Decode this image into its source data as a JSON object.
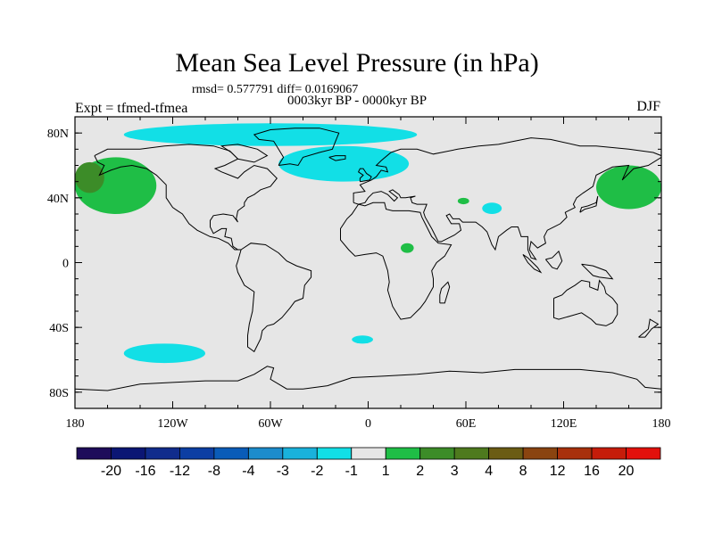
{
  "title": "Mean Sea Level Pressure (in hPa)",
  "stats": "rmsd= 0.577791 diff= 0.0169067",
  "period": "0003kyr BP - 0000kyr BP",
  "experiment": "Expt = tfmed-tfmea",
  "season": "DJF",
  "chart_data": {
    "type": "heatmap",
    "projection": "cylindrical-equidistant",
    "variable": "Mean Sea Level Pressure difference",
    "units": "hPa",
    "lon_range": [
      -180,
      180
    ],
    "lat_range": [
      -90,
      90
    ],
    "x_ticks": [
      {
        "value": -180,
        "label": "180"
      },
      {
        "value": -120,
        "label": "120W"
      },
      {
        "value": -60,
        "label": "60W"
      },
      {
        "value": 0,
        "label": "0"
      },
      {
        "value": 60,
        "label": "60E"
      },
      {
        "value": 120,
        "label": "120E"
      },
      {
        "value": 180,
        "label": "180"
      }
    ],
    "y_ticks": [
      {
        "value": 80,
        "label": "80N"
      },
      {
        "value": 40,
        "label": "40N"
      },
      {
        "value": 0,
        "label": "0"
      },
      {
        "value": -40,
        "label": "40S"
      },
      {
        "value": -80,
        "label": "80S"
      }
    ],
    "colorbar": {
      "labels": [
        "-20",
        "-16",
        "-12",
        "-8",
        "-4",
        "-3",
        "-2",
        "-1",
        "1",
        "2",
        "3",
        "4",
        "8",
        "12",
        "16",
        "20"
      ],
      "colors": [
        "#1e0c5a",
        "#0b1674",
        "#102c8c",
        "#0c3ea3",
        "#0a5cb8",
        "#1c8ccc",
        "#19b2dc",
        "#12dfe6",
        "#e6e6e6",
        "#1fbe46",
        "#3c8c28",
        "#4e7a1e",
        "#6b5c14",
        "#8a4410",
        "#a8300c",
        "#c61c0a",
        "#e2100c"
      ]
    },
    "background_class": "-1 to 1",
    "regions": [
      {
        "name": "arctic-ocean",
        "range": "-2 to -1",
        "lon": [
          -150,
          30
        ],
        "lat": [
          72,
          86
        ]
      },
      {
        "name": "north-atlantic",
        "range": "-2 to -1",
        "lon": [
          -55,
          25
        ],
        "lat": [
          50,
          72
        ]
      },
      {
        "name": "tibet-low",
        "range": "-2 to -1",
        "lon": [
          70,
          82
        ],
        "lat": [
          30,
          37
        ]
      },
      {
        "name": "south-pacific",
        "range": "-2 to -1",
        "lon": [
          -150,
          -100
        ],
        "lat": [
          -62,
          -50
        ]
      },
      {
        "name": "south-atlantic",
        "range": "-2 to -1",
        "lon": [
          -10,
          3
        ],
        "lat": [
          -50,
          -45
        ]
      },
      {
        "name": "north-pacific",
        "range": "1 to 2",
        "lon": [
          -180,
          -130
        ],
        "lat": [
          30,
          65
        ]
      },
      {
        "name": "north-pacific-core",
        "range": "2 to 3",
        "lon": [
          -180,
          -162
        ],
        "lat": [
          43,
          62
        ]
      },
      {
        "name": "north-pacific-west",
        "range": "1 to 2",
        "lon": [
          140,
          180
        ],
        "lat": [
          33,
          60
        ]
      },
      {
        "name": "central-africa",
        "range": "1 to 2",
        "lon": [
          20,
          28
        ],
        "lat": [
          6,
          12
        ]
      },
      {
        "name": "west-asia",
        "range": "1 to 2",
        "lon": [
          55,
          62
        ],
        "lat": [
          36,
          40
        ]
      }
    ]
  }
}
